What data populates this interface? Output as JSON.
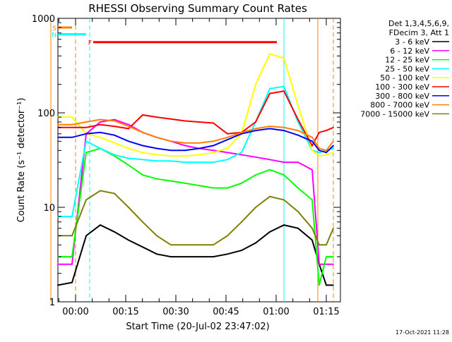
{
  "chart_data": {
    "type": "line",
    "title": "RHESSI Observing Summary Count Rates",
    "xlabel": "Start Time (20-Jul-02 23:47:02)",
    "ylabel": "Count Rate (s⁻¹ detector⁻¹)",
    "yscale": "log",
    "ylim": [
      1,
      1000
    ],
    "xlim_minutes_since_start": [
      -2,
      38
    ],
    "x_tick_labels": [
      "00:00",
      "00:15",
      "00:30",
      "00:45",
      "01:00",
      "01:15"
    ],
    "y_tick_labels": [
      "1",
      "10",
      "100",
      "1000"
    ],
    "grid": false,
    "legend_placement": "right",
    "legend_header": [
      "Det 1,3,4,5,6,9,",
      "FDecim 3, Att 1"
    ],
    "timestamp": "17-Oct-2021 11:28",
    "series": [
      {
        "name": "3 - 6 keV",
        "color": "#000000",
        "values": [
          1.5,
          1.6,
          5.0,
          6.5,
          5.5,
          4.5,
          3.8,
          3.2,
          3.0,
          3.0,
          3.0,
          3.0,
          3.2,
          3.5,
          4.2,
          5.5,
          6.5,
          6.0,
          4.5,
          2.5,
          1.5,
          1.5
        ]
      },
      {
        "name": "6 - 12 keV",
        "color": "#ff00ff",
        "values": [
          2.5,
          2.5,
          60,
          80,
          85,
          75,
          62,
          55,
          50,
          45,
          42,
          40,
          38,
          36,
          34,
          32,
          30,
          30,
          25,
          2.5,
          2.5,
          2.5
        ]
      },
      {
        "name": "12 - 25 keV",
        "color": "#00ff00",
        "values": [
          3.0,
          3.0,
          38,
          42,
          35,
          28,
          22,
          20,
          19,
          18,
          17,
          16,
          16,
          18,
          22,
          25,
          22,
          16,
          12,
          1.5,
          3.0,
          3.0
        ]
      },
      {
        "name": "25 - 50 keV",
        "color": "#00ffff",
        "values": [
          8.0,
          8.0,
          50,
          42,
          36,
          33,
          32,
          31,
          31,
          30,
          30,
          30,
          32,
          38,
          80,
          180,
          190,
          80,
          40,
          38,
          40,
          42
        ]
      },
      {
        "name": "50 - 100 keV",
        "color": "#ffff00",
        "values": [
          90,
          90,
          60,
          55,
          48,
          42,
          38,
          36,
          35,
          35,
          36,
          38,
          42,
          60,
          200,
          420,
          380,
          120,
          40,
          35,
          36,
          38
        ]
      },
      {
        "name": "100 - 300 keV",
        "color": "#ff0000",
        "values": [
          70,
          70,
          70,
          75,
          72,
          68,
          95,
          90,
          86,
          82,
          80,
          78,
          60,
          62,
          80,
          160,
          170,
          85,
          45,
          62,
          65,
          70
        ]
      },
      {
        "name": "300 - 800 keV",
        "color": "#0000ff",
        "values": [
          55,
          55,
          60,
          62,
          58,
          50,
          45,
          42,
          40,
          40,
          42,
          45,
          52,
          60,
          65,
          68,
          65,
          58,
          50,
          40,
          38,
          45
        ]
      },
      {
        "name": "800 - 7000 keV",
        "color": "#ff8000",
        "values": [
          75,
          75,
          80,
          85,
          82,
          72,
          62,
          55,
          50,
          48,
          48,
          50,
          55,
          62,
          68,
          72,
          70,
          65,
          55,
          42,
          40,
          50
        ]
      },
      {
        "name": "7000 - 15000 keV",
        "color": "#808000",
        "values": [
          5.0,
          5.0,
          12,
          15,
          14,
          10,
          7,
          5,
          4,
          4,
          4,
          4,
          5,
          7,
          10,
          13,
          12,
          9,
          6,
          4,
          4,
          6
        ]
      }
    ],
    "x_minutes": [
      -2,
      0,
      2,
      4,
      6,
      8,
      10,
      12,
      14,
      16,
      18,
      20,
      22,
      24,
      26,
      28,
      30,
      32,
      34,
      35,
      36,
      37
    ],
    "annotations": [
      {
        "label": "F",
        "color": "#ff0000",
        "from_min": 3,
        "to_min": 29,
        "level": 560
      },
      {
        "label": "N",
        "color": "#00ffff",
        "from_min": -4,
        "to_min": 2,
        "level": 680
      },
      {
        "label": "S",
        "color": "#ff8000",
        "from_min": -4,
        "to_min": 0,
        "level": 800
      }
    ],
    "markers": [
      {
        "color": "#ff8000",
        "style": "solid",
        "at_min": -3
      },
      {
        "color": "#ff8000",
        "style": "dashed",
        "at_min": 0.5
      },
      {
        "color": "#00ffff",
        "style": "dashed",
        "at_min": 2.5
      },
      {
        "color": "#00ffff",
        "style": "solid",
        "at_min": 30
      },
      {
        "color": "#ff8000",
        "style": "solid",
        "at_min": 34.8
      },
      {
        "color": "#ff8000",
        "style": "dashed",
        "at_min": 37
      }
    ]
  }
}
